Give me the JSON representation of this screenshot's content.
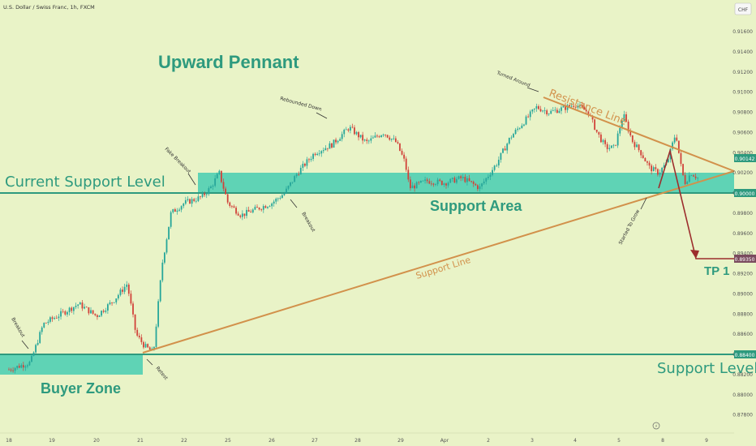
{
  "header": {
    "symbol_title": "U.S. Dollar / Swiss Franc, 1h, FXCM",
    "currency_badge": "CHF"
  },
  "chart_data": {
    "type": "candlestick",
    "title": "Upward Pennant",
    "y_axis": {
      "range": [
        0.8765,
        0.9178
      ],
      "ticks": [
        "0.91600",
        "0.91400",
        "0.91200",
        "0.91000",
        "0.90800",
        "0.90600",
        "0.90400",
        "0.90200",
        "0.90000",
        "0.89800",
        "0.89600",
        "0.89400",
        "0.89200",
        "0.89000",
        "0.88800",
        "0.88600",
        "0.88400",
        "0.88200",
        "0.88000",
        "0.87800"
      ]
    },
    "x_axis": {
      "ticks": [
        "18",
        "19",
        "20",
        "21",
        "22",
        "25",
        "26",
        "27",
        "28",
        "29",
        "Apr",
        "2",
        "3",
        "4",
        "5",
        "8",
        "9"
      ]
    },
    "price_labels": {
      "current_price": "0.90142",
      "support_price": "0.90000",
      "tp1_price": "0.89350",
      "low_support_price": "0.88400"
    },
    "levels": [
      {
        "name": "Current Support Level",
        "price": 0.9
      },
      {
        "name": "Support Level",
        "price": 0.884
      }
    ],
    "zones": [
      {
        "name": "Buyer Zone",
        "from": "18",
        "to": "21",
        "low": 0.882,
        "high": 0.884
      },
      {
        "name": "Support Area",
        "from": "22",
        "to": "8",
        "low": 0.9,
        "high": 0.902
      }
    ],
    "trendlines": [
      {
        "name": "Support Line",
        "from_x": "21",
        "from_price": 0.8842,
        "to_x": "9",
        "to_price": 0.9021
      },
      {
        "name": "Resistance Line",
        "from_x": "3",
        "from_price": 0.9093,
        "to_x": "9",
        "to_price": 0.9021
      }
    ],
    "projection": {
      "points": [
        [
          "8",
          0.9005
        ],
        [
          "8",
          0.9045
        ],
        [
          "8",
          0.8935
        ],
        [
          "9",
          0.8935
        ]
      ],
      "target": "TP 1",
      "target_price": 0.8935
    },
    "annotations": [
      "Breakout",
      "Fake Breakout",
      "Rebounded Down",
      "Breakout",
      "Turned Around",
      "Retest",
      "Started To Grow",
      "Resistance Line",
      "Support Line",
      "Support Area",
      "Buyer Zone",
      "Current Support Level",
      "Support Level",
      "TP 1"
    ],
    "colors": {
      "background": "#e9f3c7",
      "bull": "#26a69a",
      "bear": "#d1423a",
      "level_line": "#2e9a7e",
      "zone": "#5fd3b5",
      "trendline": "#d2914b",
      "projection": "#9c2d2d",
      "text": "#2e9a7e"
    },
    "price_path": [
      [
        18,
        0.8825
      ],
      [
        18.5,
        0.8832
      ],
      [
        18.8,
        0.887
      ],
      [
        19.2,
        0.888
      ],
      [
        19.6,
        0.889
      ],
      [
        20,
        0.8878
      ],
      [
        20.4,
        0.8894
      ],
      [
        20.7,
        0.891
      ],
      [
        20.9,
        0.886
      ],
      [
        21.1,
        0.8848
      ],
      [
        21.3,
        0.8842
      ],
      [
        21.5,
        0.893
      ],
      [
        21.7,
        0.898
      ],
      [
        22.0,
        0.899
      ],
      [
        22.4,
        0.8996
      ],
      [
        22.6,
        0.9005
      ],
      [
        22.8,
        0.902
      ],
      [
        23.0,
        0.899
      ],
      [
        23.3,
        0.8978
      ],
      [
        23.7,
        0.8985
      ],
      [
        24.0,
        0.899
      ],
      [
        24.3,
        0.9
      ],
      [
        24.6,
        0.902
      ],
      [
        25.0,
        0.904
      ],
      [
        25.4,
        0.9048
      ],
      [
        25.8,
        0.9065
      ],
      [
        26.2,
        0.905
      ],
      [
        26.6,
        0.906
      ],
      [
        26.9,
        0.905
      ],
      [
        27.1,
        0.903
      ],
      [
        27.2,
        0.9005
      ],
      [
        27.6,
        0.9012
      ],
      [
        28.0,
        0.901
      ],
      [
        28.4,
        0.9015
      ],
      [
        28.8,
        0.9005
      ],
      [
        29.2,
        0.903
      ],
      [
        29.5,
        0.9055
      ],
      [
        29.8,
        0.907
      ],
      [
        30.1,
        0.9085
      ],
      [
        30.4,
        0.908
      ],
      [
        30.8,
        0.9085
      ],
      [
        31.0,
        0.9088
      ],
      [
        31.3,
        0.908
      ],
      [
        31.5,
        0.906
      ],
      [
        31.7,
        0.9045
      ],
      [
        31.9,
        0.9045
      ],
      [
        32.1,
        0.9078
      ],
      [
        32.3,
        0.9052
      ],
      [
        32.5,
        0.904
      ],
      [
        32.7,
        0.9025
      ],
      [
        32.9,
        0.902
      ],
      [
        33.1,
        0.903
      ],
      [
        33.3,
        0.906
      ],
      [
        33.4,
        0.903
      ],
      [
        33.5,
        0.901
      ],
      [
        33.65,
        0.902
      ],
      [
        33.8,
        0.9015
      ]
    ]
  }
}
